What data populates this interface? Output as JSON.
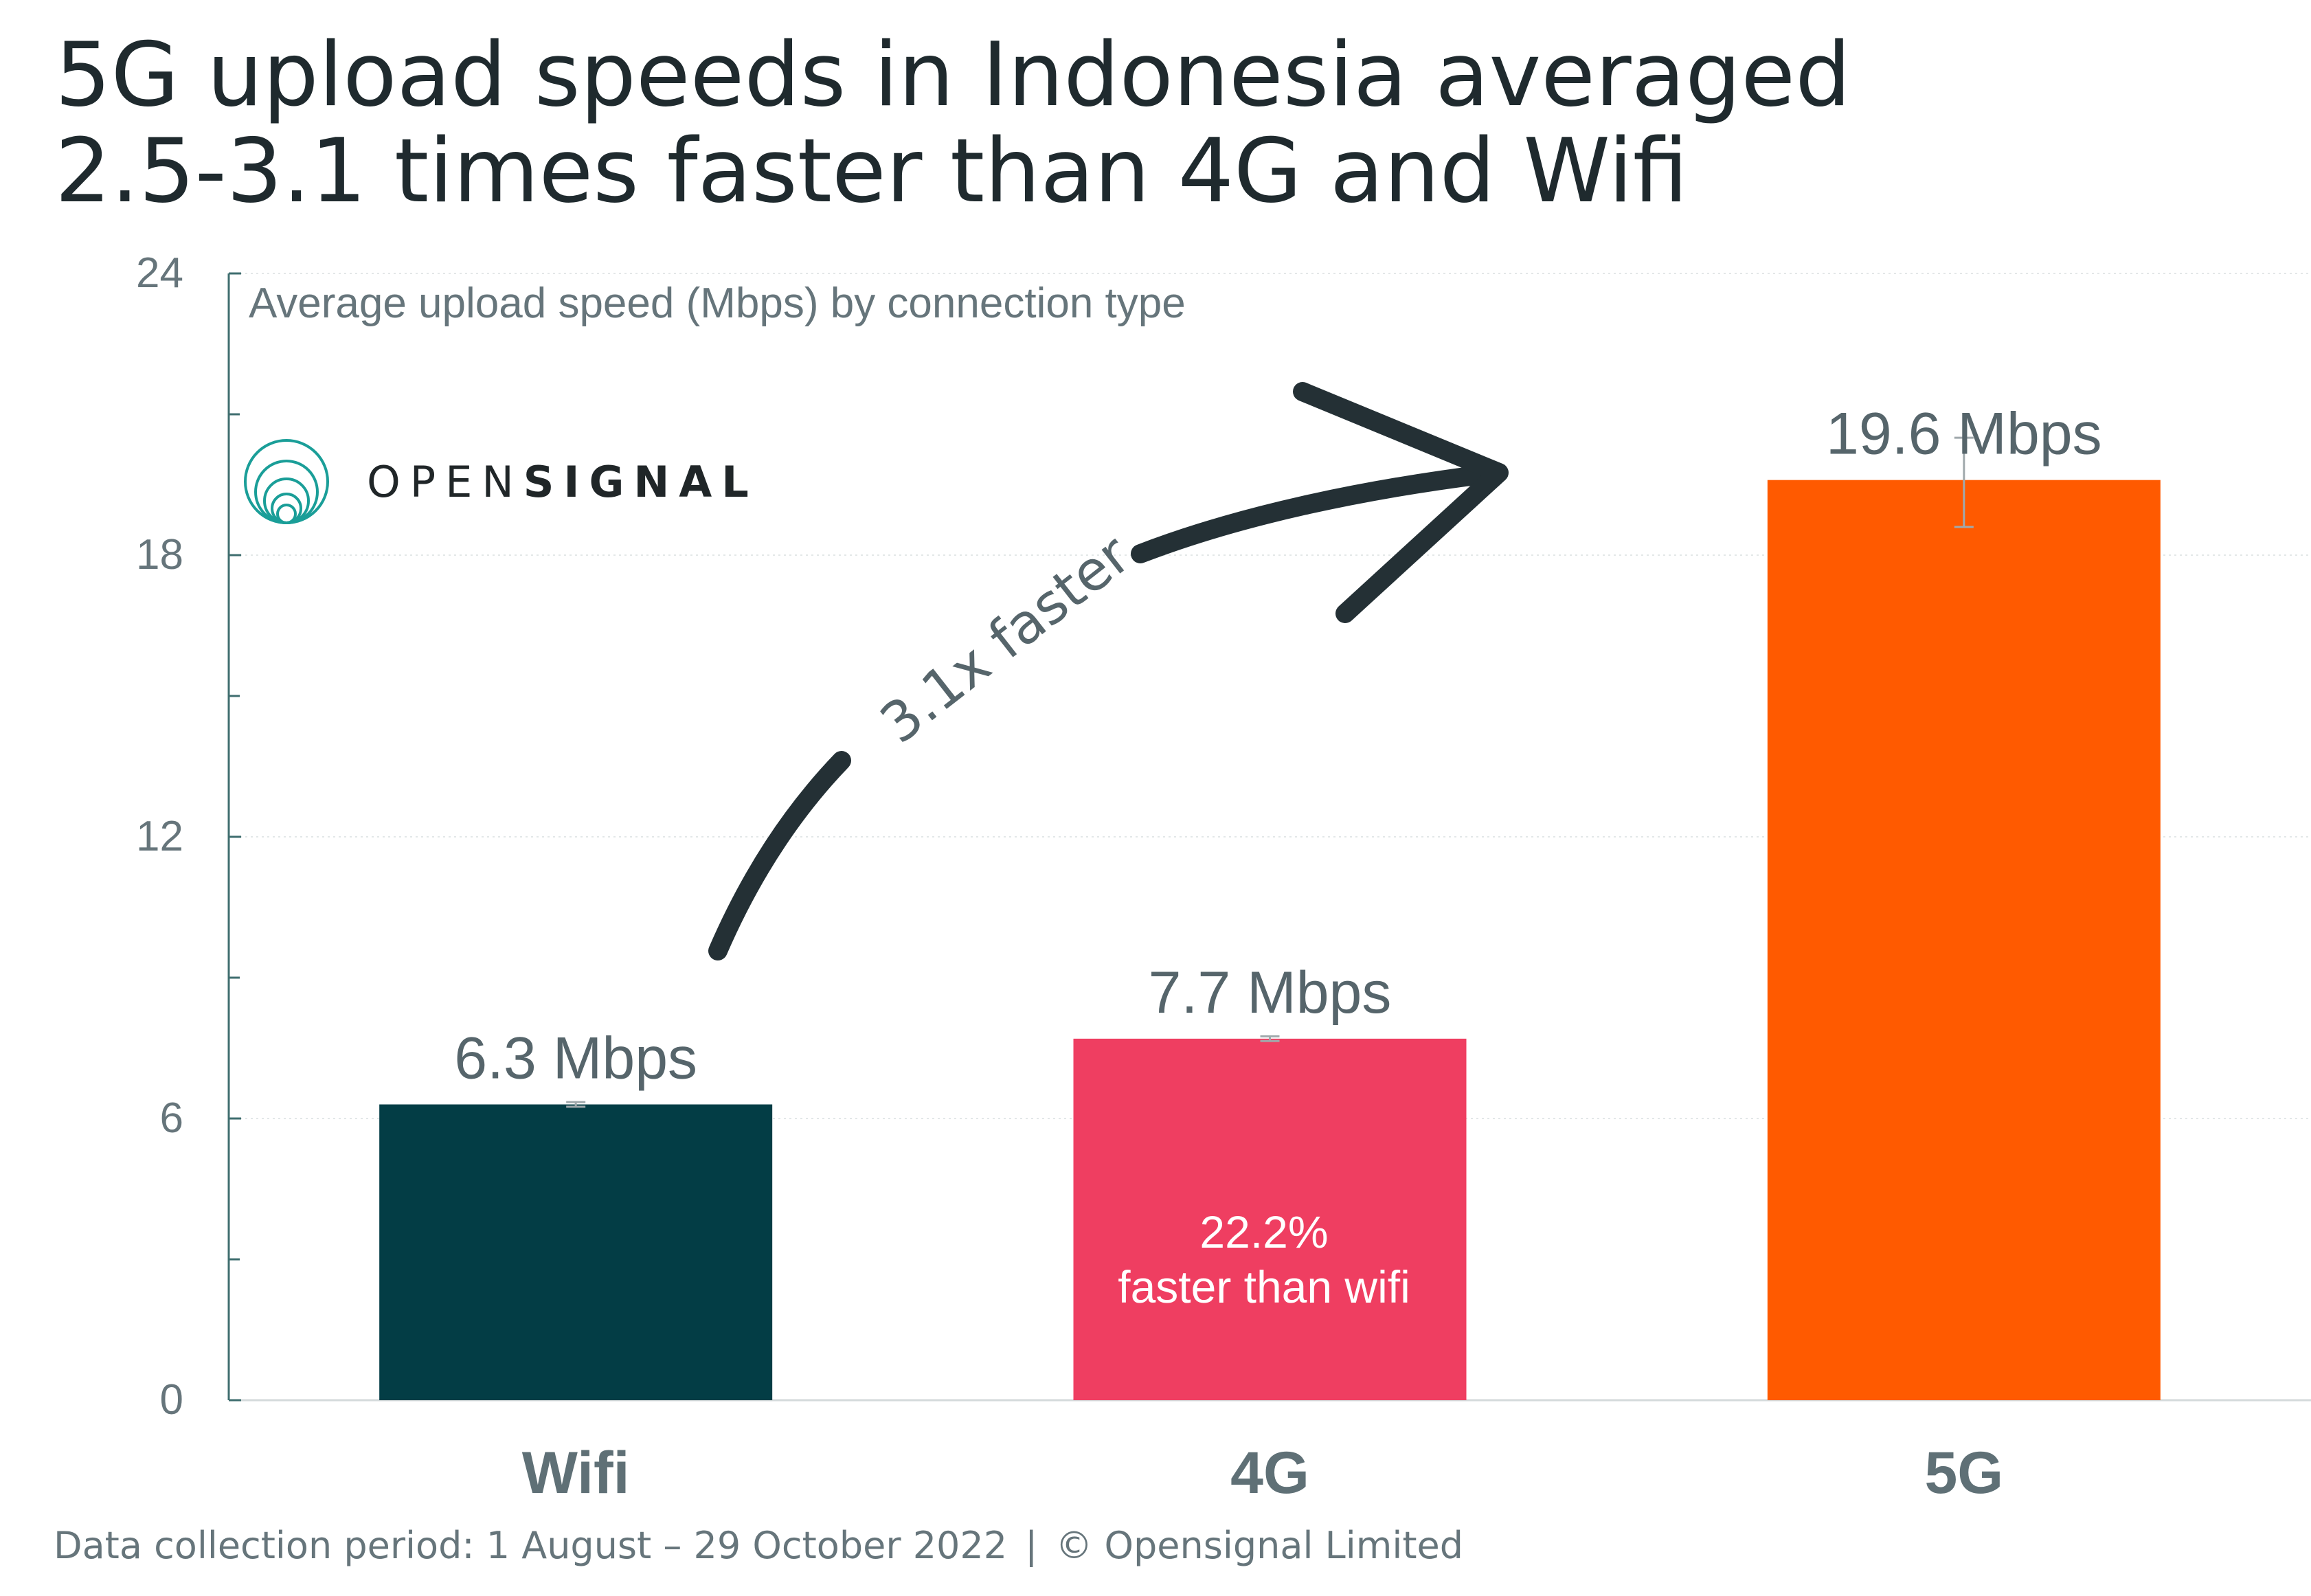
{
  "title": {
    "line1": "5G upload speeds in Indonesia averaged",
    "line2": "2.5-3.1 times faster than 4G and Wifi"
  },
  "logo": {
    "text_light": "OPEN",
    "text_bold": "SIGNAL",
    "color": "#1a9e98"
  },
  "footer": {
    "period": "Data collection period: 1 August – 29 October 2022",
    "separator": "|",
    "copyright": "© Opensignal Limited"
  },
  "chart_data": {
    "type": "bar",
    "subtitle": "Average upload speed (Mbps) by connection type",
    "categories": [
      "Wifi",
      "4G",
      "5G"
    ],
    "values": [
      6.3,
      7.7,
      19.6
    ],
    "value_labels": [
      "6.3 Mbps",
      "7.7 Mbps",
      "19.6 Mbps"
    ],
    "error_bars": [
      [
        6.25,
        6.35
      ],
      [
        7.65,
        7.75
      ],
      [
        18.6,
        20.5
      ]
    ],
    "colors": [
      "#033d45",
      "#ef3e61",
      "#ff5a00"
    ],
    "ylim": [
      0,
      24
    ],
    "yticks": [
      0,
      6,
      12,
      18,
      24
    ],
    "ytick_labels": [
      "0",
      "6",
      "12",
      "18",
      "24"
    ],
    "minor_yticks": [
      3,
      9,
      15,
      21
    ],
    "grid": true,
    "annotations": {
      "inside_4g_line1": "22.2%",
      "inside_4g_line2": "faster than wifi",
      "arrow_label": "3.1x faster"
    }
  }
}
